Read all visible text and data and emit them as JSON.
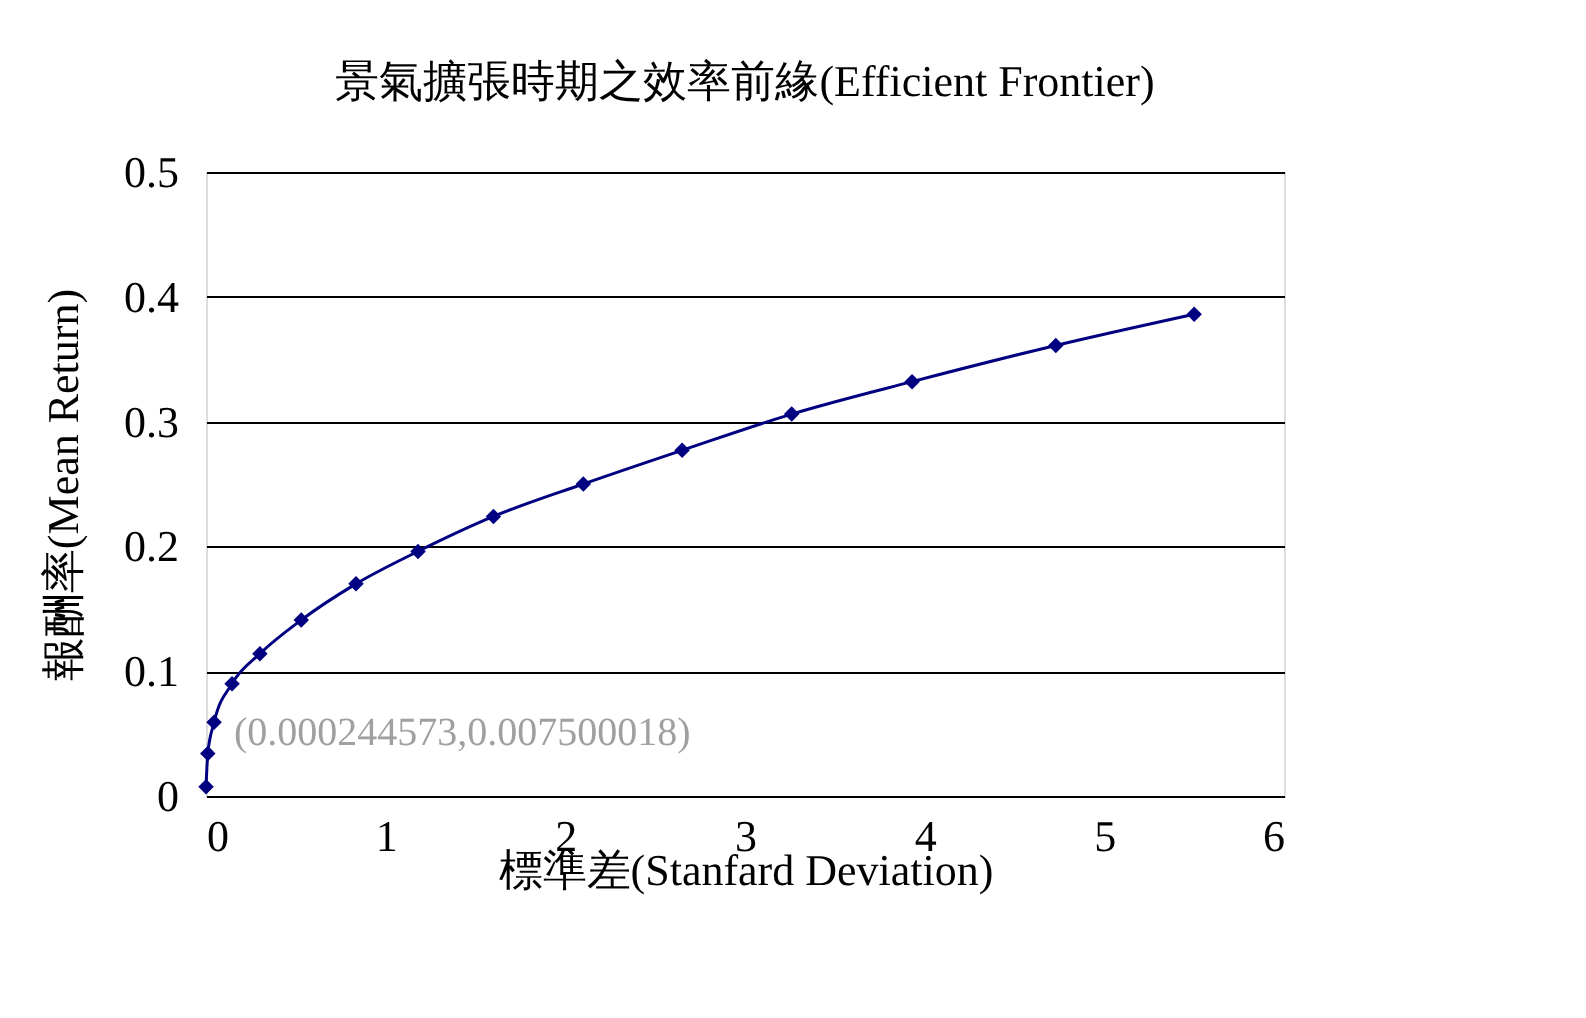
{
  "chart_data": {
    "type": "line",
    "title": "景氣擴張時期之效率前緣(Efficient Frontier)",
    "xlabel": "標準差(Stanfard Deviation)",
    "ylabel": "報酬率(Mean Return)",
    "x": [
      0.000244573,
      0.01,
      0.045,
      0.145,
      0.3,
      0.53,
      0.835,
      1.18,
      1.6,
      2.1,
      2.65,
      3.26,
      3.93,
      4.73,
      5.5
    ],
    "series": [
      {
        "color": "#000080",
        "values": [
          0.0075,
          0.034,
          0.059,
          0.09,
          0.114,
          0.141,
          0.17,
          0.196,
          0.224,
          0.25,
          0.277,
          0.306,
          0.332,
          0.361,
          0.386
        ]
      }
    ],
    "xlim": [
      0,
      6
    ],
    "xticks": [
      0,
      1,
      2,
      3,
      4,
      5,
      6
    ],
    "ylim": [
      0,
      0.5
    ],
    "yticks": [
      0,
      0.1,
      0.2,
      0.3,
      0.4,
      0.5
    ],
    "grid": "y",
    "marker": "diamond",
    "line_style": "solid",
    "annotations": [
      {
        "text": "(0.000244573,0.007500018)",
        "x": 0.000244573,
        "y": 0.007500018
      }
    ]
  }
}
